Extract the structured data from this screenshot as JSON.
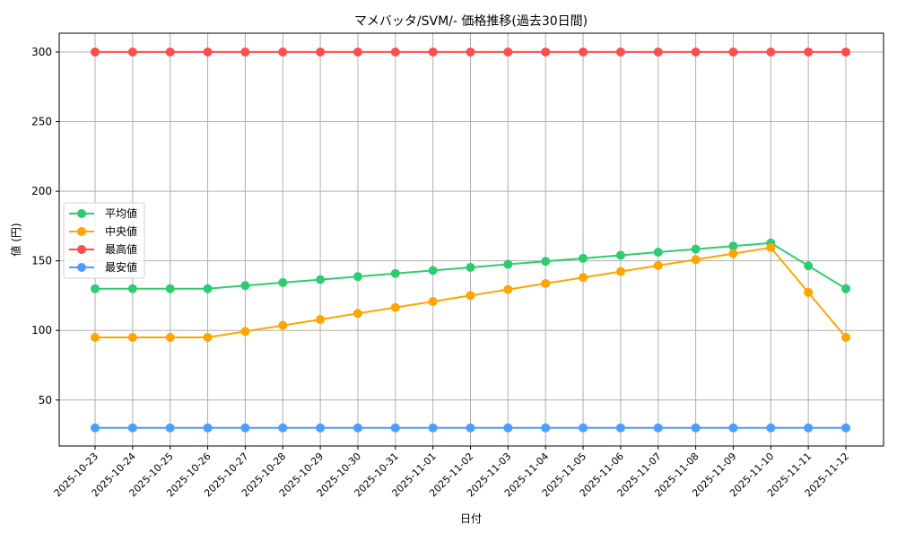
{
  "chart_data": {
    "type": "line",
    "title": "マメバッタ/SVM/- 価格推移(過去30日間)",
    "xlabel": "日付",
    "ylabel": "値 (円)",
    "ylim": [
      17,
      313.5
    ],
    "yticks": [
      50,
      100,
      150,
      200,
      250,
      300
    ],
    "grid": true,
    "legend_position": "center left",
    "categories": [
      "2025-10-23",
      "2025-10-24",
      "2025-10-25",
      "2025-10-26",
      "2025-10-27",
      "2025-10-28",
      "2025-10-29",
      "2025-10-30",
      "2025-10-31",
      "2025-11-01",
      "2025-11-02",
      "2025-11-03",
      "2025-11-04",
      "2025-11-05",
      "2025-11-06",
      "2025-11-07",
      "2025-11-08",
      "2025-11-09",
      "2025-11-10",
      "2025-11-11",
      "2025-11-12"
    ],
    "series": [
      {
        "name": "平均値",
        "color": "#2ecc71",
        "values": [
          130,
          130,
          130,
          130,
          132.2,
          134.4,
          136.5,
          138.7,
          140.9,
          143.1,
          145.3,
          147.5,
          149.6,
          151.8,
          154,
          156.2,
          158.4,
          160.6,
          162.8,
          146.4,
          130
        ]
      },
      {
        "name": "中央値",
        "color": "#ffa500",
        "values": [
          95,
          95,
          95,
          95,
          99.3,
          103.6,
          107.9,
          112.2,
          116.5,
          120.8,
          125.1,
          129.4,
          133.7,
          138,
          142.3,
          146.6,
          150.9,
          155.2,
          159.5,
          127.3,
          95
        ]
      },
      {
        "name": "最高値",
        "color": "#ff4d4d",
        "values": [
          300,
          300,
          300,
          300,
          300,
          300,
          300,
          300,
          300,
          300,
          300,
          300,
          300,
          300,
          300,
          300,
          300,
          300,
          300,
          300,
          300
        ]
      },
      {
        "name": "最安値",
        "color": "#4d9fff",
        "values": [
          30,
          30,
          30,
          30,
          30,
          30,
          30,
          30,
          30,
          30,
          30,
          30,
          30,
          30,
          30,
          30,
          30,
          30,
          30,
          30,
          30
        ]
      }
    ]
  }
}
